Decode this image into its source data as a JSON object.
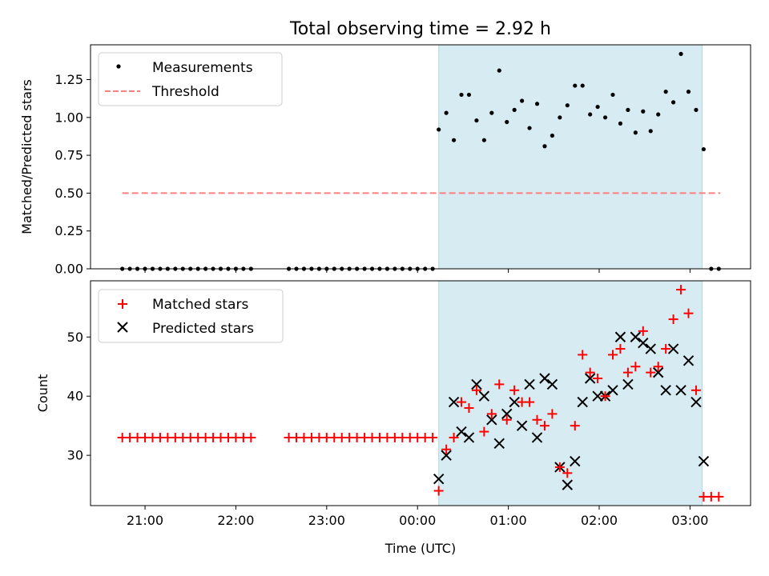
{
  "title": "Total observing time = 2.92 h",
  "colors": {
    "shade": "#add8e6",
    "threshold": "#ff7f7f",
    "matched": "#ff0000",
    "predicted": "#000000",
    "measurement": "#000000"
  },
  "chart_data": [
    {
      "type": "scatter",
      "ylabel": "Matched/Predicted stars",
      "xlabel": "",
      "ylim": [
        0,
        1.48
      ],
      "xlim": [
        "20:24",
        "03:40"
      ],
      "yticks": [
        "0.00",
        "0.25",
        "0.50",
        "0.75",
        "1.00",
        "1.25"
      ],
      "ytick_values": [
        0,
        0.25,
        0.5,
        0.75,
        1.0,
        1.25
      ],
      "legend_position": "top-left",
      "shaded_span": [
        "00:14",
        "03:08"
      ],
      "series": [
        {
          "name": "Measurements",
          "marker": "dot",
          "points": [
            [
              "20:45",
              0
            ],
            [
              "20:50",
              0
            ],
            [
              "20:55",
              0
            ],
            [
              "21:00",
              0
            ],
            [
              "21:05",
              0
            ],
            [
              "21:10",
              0
            ],
            [
              "21:15",
              0
            ],
            [
              "21:20",
              0
            ],
            [
              "21:25",
              0
            ],
            [
              "21:30",
              0
            ],
            [
              "21:35",
              0
            ],
            [
              "21:40",
              0
            ],
            [
              "21:45",
              0
            ],
            [
              "21:50",
              0
            ],
            [
              "21:55",
              0
            ],
            [
              "22:00",
              0
            ],
            [
              "22:05",
              0
            ],
            [
              "22:10",
              0
            ],
            [
              "22:35",
              0
            ],
            [
              "22:40",
              0
            ],
            [
              "22:45",
              0
            ],
            [
              "22:50",
              0
            ],
            [
              "22:55",
              0
            ],
            [
              "23:00",
              0
            ],
            [
              "23:05",
              0
            ],
            [
              "23:10",
              0
            ],
            [
              "23:15",
              0
            ],
            [
              "23:20",
              0
            ],
            [
              "23:25",
              0
            ],
            [
              "23:30",
              0
            ],
            [
              "23:35",
              0
            ],
            [
              "23:40",
              0
            ],
            [
              "23:45",
              0
            ],
            [
              "23:50",
              0
            ],
            [
              "23:55",
              0
            ],
            [
              "00:00",
              0
            ],
            [
              "00:05",
              0
            ],
            [
              "00:10",
              0
            ],
            [
              "00:14",
              0.92
            ],
            [
              "00:19",
              1.03
            ],
            [
              "00:24",
              0.85
            ],
            [
              "00:29",
              1.15
            ],
            [
              "00:34",
              1.15
            ],
            [
              "00:39",
              0.98
            ],
            [
              "00:44",
              0.85
            ],
            [
              "00:49",
              1.03
            ],
            [
              "00:54",
              1.31
            ],
            [
              "00:59",
              0.97
            ],
            [
              "01:04",
              1.05
            ],
            [
              "01:09",
              1.11
            ],
            [
              "01:14",
              0.93
            ],
            [
              "01:19",
              1.09
            ],
            [
              "01:24",
              0.81
            ],
            [
              "01:29",
              0.88
            ],
            [
              "01:34",
              1.0
            ],
            [
              "01:39",
              1.08
            ],
            [
              "01:44",
              1.21
            ],
            [
              "01:49",
              1.21
            ],
            [
              "01:54",
              1.02
            ],
            [
              "01:59",
              1.07
            ],
            [
              "02:04",
              1.0
            ],
            [
              "02:09",
              1.15
            ],
            [
              "02:14",
              0.96
            ],
            [
              "02:19",
              1.05
            ],
            [
              "02:24",
              0.9
            ],
            [
              "02:29",
              1.04
            ],
            [
              "02:34",
              0.91
            ],
            [
              "02:39",
              1.02
            ],
            [
              "02:44",
              1.17
            ],
            [
              "02:49",
              1.1
            ],
            [
              "02:54",
              1.42
            ],
            [
              "02:59",
              1.17
            ],
            [
              "03:04",
              1.05
            ],
            [
              "03:09",
              0.79
            ],
            [
              "03:14",
              0
            ],
            [
              "03:19",
              0
            ]
          ]
        },
        {
          "name": "Threshold",
          "style": "dashed",
          "points": [
            [
              "20:45",
              0.5
            ],
            [
              "03:20",
              0.5
            ]
          ]
        }
      ]
    },
    {
      "type": "scatter",
      "ylabel": "Count",
      "xlabel": "Time (UTC)",
      "ylim": [
        21.5,
        59.5
      ],
      "xlim": [
        "20:24",
        "03:40"
      ],
      "yticks": [
        "30",
        "40",
        "50"
      ],
      "ytick_values": [
        30,
        40,
        50
      ],
      "xticks": [
        "21:00",
        "22:00",
        "23:00",
        "00:00",
        "01:00",
        "02:00",
        "03:00"
      ],
      "legend_position": "top-left",
      "shaded_span": [
        "00:14",
        "03:08"
      ],
      "series": [
        {
          "name": "Matched stars",
          "marker": "plus",
          "points": [
            [
              "20:45",
              33
            ],
            [
              "20:50",
              33
            ],
            [
              "20:55",
              33
            ],
            [
              "21:00",
              33
            ],
            [
              "21:05",
              33
            ],
            [
              "21:10",
              33
            ],
            [
              "21:15",
              33
            ],
            [
              "21:20",
              33
            ],
            [
              "21:25",
              33
            ],
            [
              "21:30",
              33
            ],
            [
              "21:35",
              33
            ],
            [
              "21:40",
              33
            ],
            [
              "21:45",
              33
            ],
            [
              "21:50",
              33
            ],
            [
              "21:55",
              33
            ],
            [
              "22:00",
              33
            ],
            [
              "22:05",
              33
            ],
            [
              "22:10",
              33
            ],
            [
              "22:35",
              33
            ],
            [
              "22:40",
              33
            ],
            [
              "22:45",
              33
            ],
            [
              "22:50",
              33
            ],
            [
              "22:55",
              33
            ],
            [
              "23:00",
              33
            ],
            [
              "23:05",
              33
            ],
            [
              "23:10",
              33
            ],
            [
              "23:15",
              33
            ],
            [
              "23:20",
              33
            ],
            [
              "23:25",
              33
            ],
            [
              "23:30",
              33
            ],
            [
              "23:35",
              33
            ],
            [
              "23:40",
              33
            ],
            [
              "23:45",
              33
            ],
            [
              "23:50",
              33
            ],
            [
              "23:55",
              33
            ],
            [
              "00:00",
              33
            ],
            [
              "00:05",
              33
            ],
            [
              "00:10",
              33
            ],
            [
              "00:14",
              24
            ],
            [
              "00:19",
              31
            ],
            [
              "00:24",
              33
            ],
            [
              "00:29",
              39
            ],
            [
              "00:34",
              38
            ],
            [
              "00:39",
              41
            ],
            [
              "00:44",
              34
            ],
            [
              "00:49",
              37
            ],
            [
              "00:54",
              42
            ],
            [
              "00:59",
              36
            ],
            [
              "01:04",
              41
            ],
            [
              "01:09",
              39
            ],
            [
              "01:14",
              39
            ],
            [
              "01:19",
              36
            ],
            [
              "01:24",
              35
            ],
            [
              "01:29",
              37
            ],
            [
              "01:34",
              28
            ],
            [
              "01:39",
              27
            ],
            [
              "01:44",
              35
            ],
            [
              "01:49",
              47
            ],
            [
              "01:54",
              44
            ],
            [
              "01:59",
              43
            ],
            [
              "02:04",
              40
            ],
            [
              "02:09",
              47
            ],
            [
              "02:14",
              48
            ],
            [
              "02:19",
              44
            ],
            [
              "02:24",
              45
            ],
            [
              "02:29",
              51
            ],
            [
              "02:34",
              44
            ],
            [
              "02:39",
              45
            ],
            [
              "02:44",
              48
            ],
            [
              "02:49",
              53
            ],
            [
              "02:54",
              58
            ],
            [
              "02:59",
              54
            ],
            [
              "03:04",
              41
            ],
            [
              "03:09",
              23
            ],
            [
              "03:14",
              23
            ],
            [
              "03:19",
              23
            ]
          ]
        },
        {
          "name": "Predicted stars",
          "marker": "x",
          "points": [
            [
              "00:14",
              26
            ],
            [
              "00:19",
              30
            ],
            [
              "00:24",
              39
            ],
            [
              "00:29",
              34
            ],
            [
              "00:34",
              33
            ],
            [
              "00:39",
              42
            ],
            [
              "00:44",
              40
            ],
            [
              "00:49",
              36
            ],
            [
              "00:54",
              32
            ],
            [
              "00:59",
              37
            ],
            [
              "01:04",
              39
            ],
            [
              "01:09",
              35
            ],
            [
              "01:14",
              42
            ],
            [
              "01:19",
              33
            ],
            [
              "01:24",
              43
            ],
            [
              "01:29",
              42
            ],
            [
              "01:34",
              28
            ],
            [
              "01:39",
              25
            ],
            [
              "01:44",
              29
            ],
            [
              "01:49",
              39
            ],
            [
              "01:54",
              43
            ],
            [
              "01:59",
              40
            ],
            [
              "02:04",
              40
            ],
            [
              "02:09",
              41
            ],
            [
              "02:14",
              50
            ],
            [
              "02:19",
              42
            ],
            [
              "02:24",
              50
            ],
            [
              "02:29",
              49
            ],
            [
              "02:34",
              48
            ],
            [
              "02:39",
              44
            ],
            [
              "02:44",
              41
            ],
            [
              "02:49",
              48
            ],
            [
              "02:54",
              41
            ],
            [
              "02:59",
              46
            ],
            [
              "03:04",
              39
            ],
            [
              "03:09",
              29
            ]
          ]
        }
      ]
    }
  ]
}
